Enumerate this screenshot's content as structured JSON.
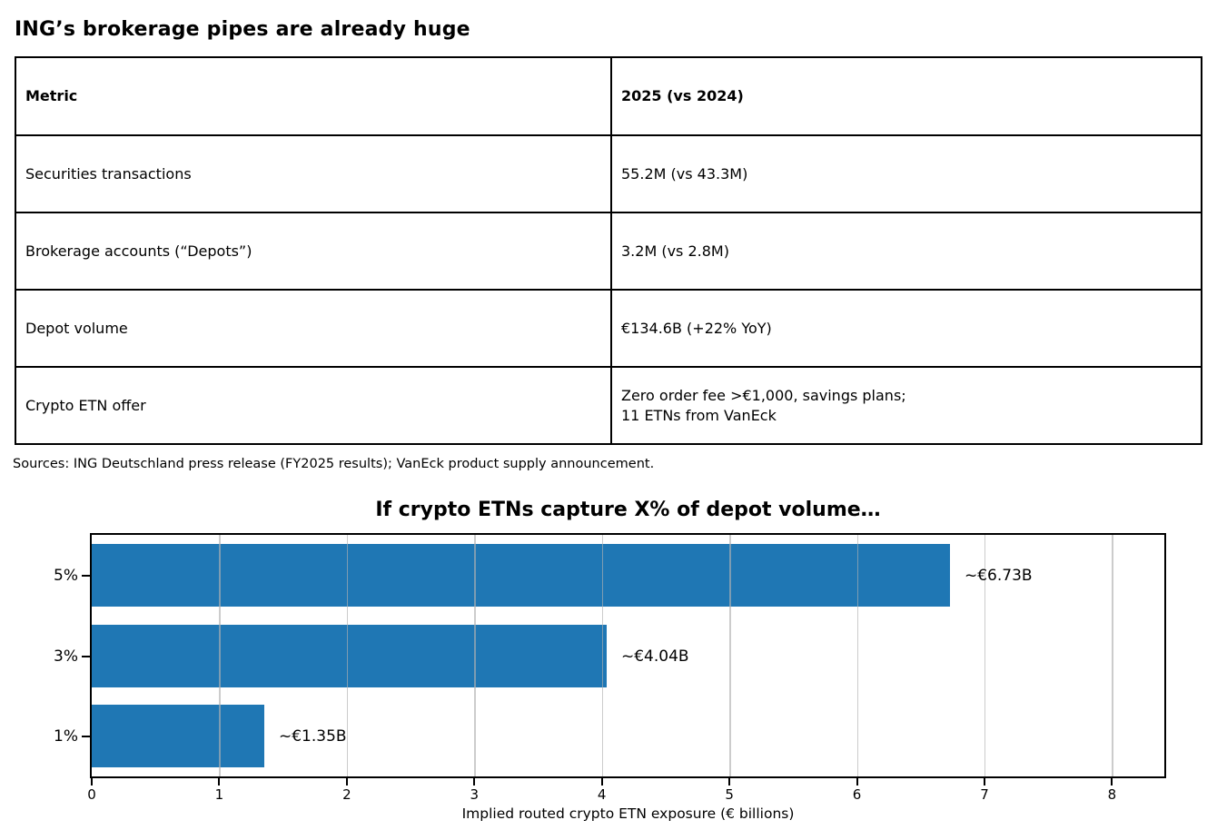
{
  "page": {
    "title": "ING’s brokerage pipes are already huge"
  },
  "table": {
    "headers": [
      "Metric",
      "2025 (vs 2024)"
    ],
    "rows": [
      [
        "Securities transactions",
        "55.2M (vs 43.3M)"
      ],
      [
        "Brokerage accounts (“Depots”)",
        "3.2M (vs 2.8M)"
      ],
      [
        "Depot volume",
        "€134.6B (+22% YoY)"
      ],
      [
        "Crypto ETN offer",
        "Zero order fee >€1,000, savings plans;\n11 ETNs from VanEck"
      ]
    ]
  },
  "source_note": "Sources: ING Deutschland press release (FY2025 results); VanEck product supply announcement.",
  "chart_data": {
    "type": "bar",
    "orientation": "horizontal",
    "title": "If crypto ETNs capture X% of depot volume…",
    "categories": [
      "5%",
      "3%",
      "1%"
    ],
    "values": [
      6.73,
      4.04,
      1.35
    ],
    "bar_labels": [
      "~€6.73B",
      "~€4.04B",
      "~€1.35B"
    ],
    "xlabel": "Implied routed crypto ETN exposure (€ billions)",
    "xticks": [
      0,
      1,
      2,
      3,
      4,
      5,
      6,
      7,
      8
    ],
    "xlim": [
      0,
      8.41
    ],
    "bar_color": "#1f77b4",
    "grid": true,
    "grid_axis": "x",
    "legend": false
  }
}
